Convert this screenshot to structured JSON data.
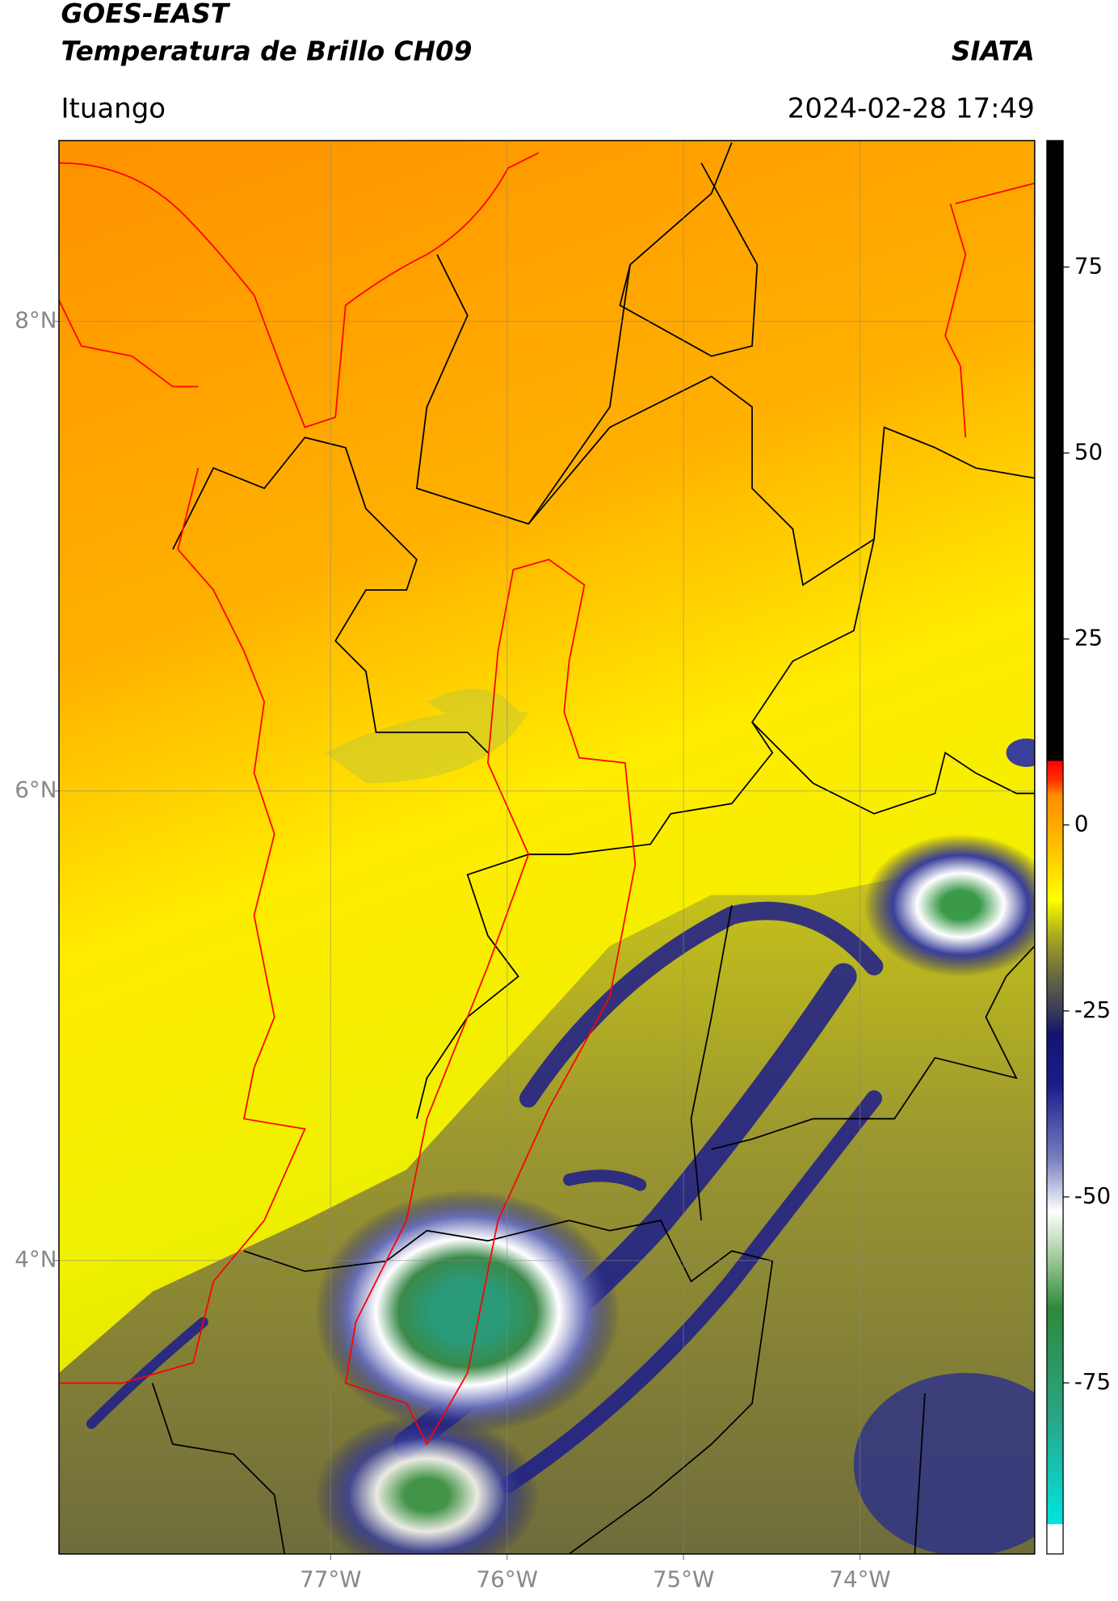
{
  "header": {
    "title": "GOES-EAST",
    "subtitle": "Temperatura de Brillo CH09",
    "source": "SIATA",
    "location": "Ituango",
    "datetime": "2024-02-28 17:49"
  },
  "map": {
    "xlim": [
      -78.54,
      -73.01
    ],
    "ylim": [
      2.75,
      8.77
    ],
    "xticks": [
      {
        "value": -77,
        "label": "77°W"
      },
      {
        "value": -76,
        "label": "76°W"
      },
      {
        "value": -75,
        "label": "75°W"
      },
      {
        "value": -74,
        "label": "74°W"
      }
    ],
    "yticks": [
      {
        "value": 8,
        "label": "8°N"
      },
      {
        "value": 6,
        "label": "6°N"
      },
      {
        "value": 4,
        "label": "4°N"
      }
    ],
    "grid": true
  },
  "colorbar": {
    "lim": [
      -98,
      92
    ],
    "ticks": [
      75,
      50,
      25,
      0,
      -25,
      -50,
      -75
    ],
    "colormap": [
      {
        "value": -98,
        "color": "#ffffff"
      },
      {
        "value": -94,
        "color": "#ffffff"
      },
      {
        "value": -94,
        "color": "#00e5e0"
      },
      {
        "value": -80,
        "color": "#2aa58a"
      },
      {
        "value": -65,
        "color": "#2d8a3a"
      },
      {
        "value": -58,
        "color": "#a3cc9c"
      },
      {
        "value": -52,
        "color": "#ffffff"
      },
      {
        "value": -45,
        "color": "#7a80c0"
      },
      {
        "value": -35,
        "color": "#1c1c8c"
      },
      {
        "value": -28,
        "color": "#141470"
      },
      {
        "value": -25,
        "color": "#3a3a5a"
      },
      {
        "value": -20,
        "color": "#6b6b40"
      },
      {
        "value": -15,
        "color": "#a8a820"
      },
      {
        "value": -10,
        "color": "#ffff00"
      },
      {
        "value": -3,
        "color": "#ffc000"
      },
      {
        "value": 4,
        "color": "#ff8c00"
      },
      {
        "value": 6,
        "color": "#ff3000"
      },
      {
        "value": 8.6,
        "color": "#ff0000"
      },
      {
        "value": 8.6,
        "color": "#000000"
      },
      {
        "value": 92,
        "color": "#000000"
      }
    ]
  }
}
